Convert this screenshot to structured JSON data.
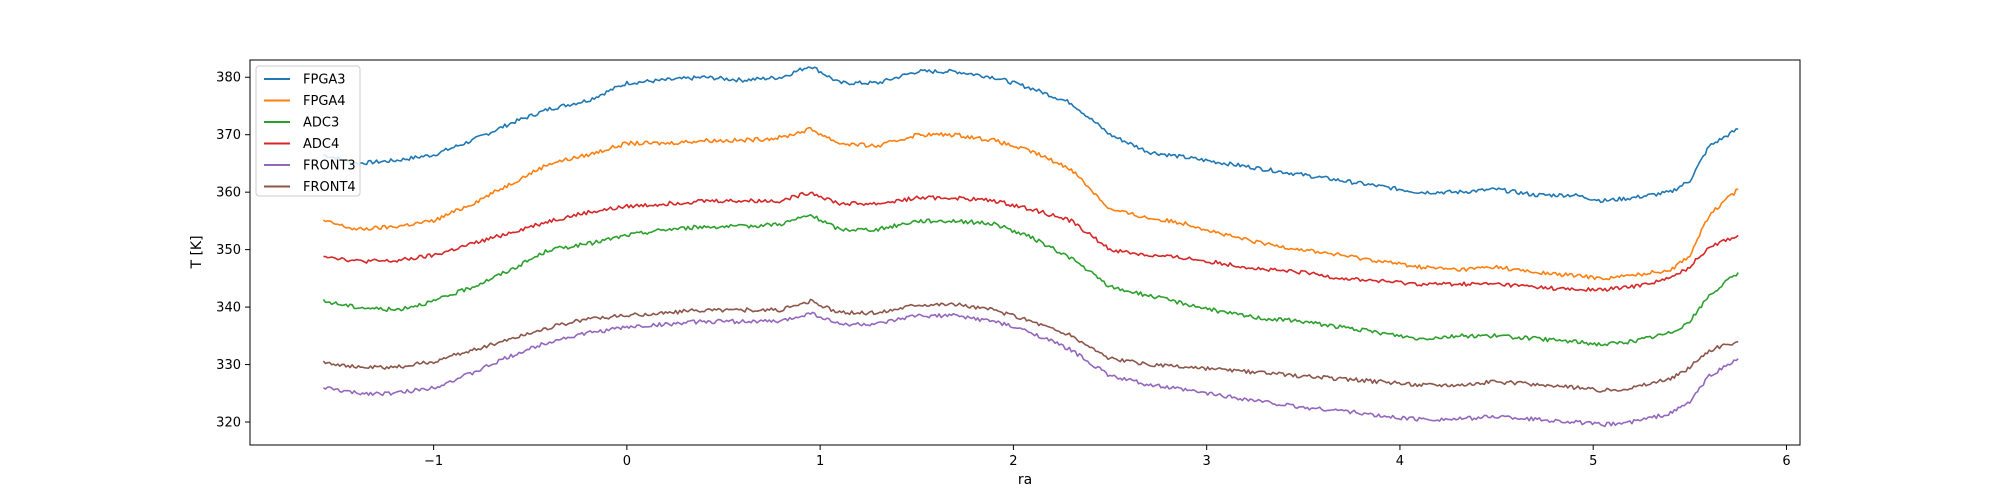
{
  "chart_data": {
    "type": "line",
    "title": "",
    "xlabel": "ra",
    "ylabel": "T [K]",
    "xlim": [
      -1.95,
      6.07
    ],
    "ylim": [
      316,
      383
    ],
    "xticks": [
      -1,
      0,
      1,
      2,
      3,
      4,
      5,
      6
    ],
    "xtick_labels": [
      "−1",
      "0",
      "1",
      "2",
      "3",
      "4",
      "5",
      "6"
    ],
    "yticks": [
      320,
      330,
      340,
      350,
      360,
      370,
      380
    ],
    "ytick_labels": [
      "320",
      "330",
      "340",
      "350",
      "360",
      "370",
      "380"
    ],
    "grid": false,
    "legend": "top-left",
    "x": [
      -1.57,
      -1.4,
      -1.2,
      -1.0,
      -0.8,
      -0.6,
      -0.4,
      -0.2,
      0.0,
      0.2,
      0.4,
      0.6,
      0.8,
      0.95,
      1.1,
      1.3,
      1.5,
      1.7,
      1.9,
      2.1,
      2.3,
      2.5,
      2.7,
      2.9,
      3.1,
      3.3,
      3.5,
      3.7,
      3.9,
      4.1,
      4.3,
      4.5,
      4.7,
      4.9,
      5.05,
      5.2,
      5.4,
      5.5,
      5.6,
      5.75
    ],
    "series": [
      {
        "name": "FPGA3",
        "color": "#1f77b4",
        "values": [
          366.5,
          365,
          365.5,
          366.5,
          369,
          372,
          374.5,
          376,
          379,
          379.5,
          380,
          379.5,
          380,
          382,
          379,
          379,
          381,
          381,
          380,
          378,
          375.5,
          370,
          367,
          366,
          365,
          364,
          363,
          362,
          361,
          360,
          360,
          360.5,
          359.5,
          359.5,
          358.5,
          359,
          360,
          362,
          368,
          371
        ]
      },
      {
        "name": "FPGA4",
        "color": "#ff7f0e",
        "values": [
          355,
          353.5,
          354,
          355,
          358,
          361.5,
          365,
          366.5,
          368.5,
          368.5,
          369,
          369,
          369.5,
          371,
          368.5,
          368,
          370,
          370,
          369,
          367,
          364,
          357,
          355.5,
          354.5,
          352.5,
          351,
          350,
          349,
          348,
          347,
          346.5,
          347,
          346,
          345.5,
          345,
          345.5,
          346.5,
          349,
          356,
          360.5
        ]
      },
      {
        "name": "ADC3",
        "color": "#2ca02c",
        "values": [
          341,
          340,
          339.5,
          341,
          343.5,
          346.5,
          350,
          351,
          352.5,
          353.5,
          354,
          354,
          354.5,
          356,
          353.5,
          353.5,
          355,
          355,
          354.5,
          352,
          348.5,
          343.5,
          342,
          340.5,
          339,
          338,
          337.5,
          336.5,
          335.5,
          334.5,
          335,
          335,
          334.5,
          334,
          333.5,
          334,
          335.5,
          337.5,
          342,
          346
        ]
      },
      {
        "name": "ADC4",
        "color": "#d62728",
        "values": [
          349,
          348,
          348,
          349,
          351,
          353,
          355,
          356.5,
          357.5,
          358,
          358.5,
          358.5,
          358.5,
          360,
          358,
          358,
          359,
          359,
          358.5,
          357,
          355,
          350,
          349,
          348.5,
          347.5,
          346.5,
          346,
          345,
          344.5,
          344,
          344,
          344,
          343.5,
          343,
          343,
          343.5,
          345,
          347,
          350.5,
          352.5
        ]
      },
      {
        "name": "FRONT3",
        "color": "#9467bd",
        "values": [
          326,
          325,
          325,
          326,
          328.5,
          331.5,
          334,
          335.5,
          336.5,
          337,
          337.5,
          337.5,
          337.5,
          339,
          337,
          337,
          338.5,
          338.5,
          337.5,
          335.5,
          332.5,
          328,
          326.5,
          325.5,
          324.5,
          323.5,
          322.5,
          322,
          321,
          320.5,
          320.5,
          321,
          320.5,
          320,
          319.5,
          320,
          321.5,
          323.5,
          328,
          331
        ]
      },
      {
        "name": "FRONT4",
        "color": "#8c564b",
        "values": [
          330.5,
          329.5,
          329.5,
          330.5,
          332.5,
          334.5,
          336.5,
          338,
          338.5,
          339,
          339.5,
          339.5,
          339.5,
          341,
          339,
          339,
          340.5,
          340.5,
          339.5,
          337.5,
          335,
          331,
          330,
          329.5,
          329,
          328.5,
          328,
          327.5,
          327,
          326.5,
          326.5,
          327,
          326.5,
          326,
          325.5,
          326,
          327.5,
          329.5,
          332.5,
          334
        ]
      }
    ]
  }
}
